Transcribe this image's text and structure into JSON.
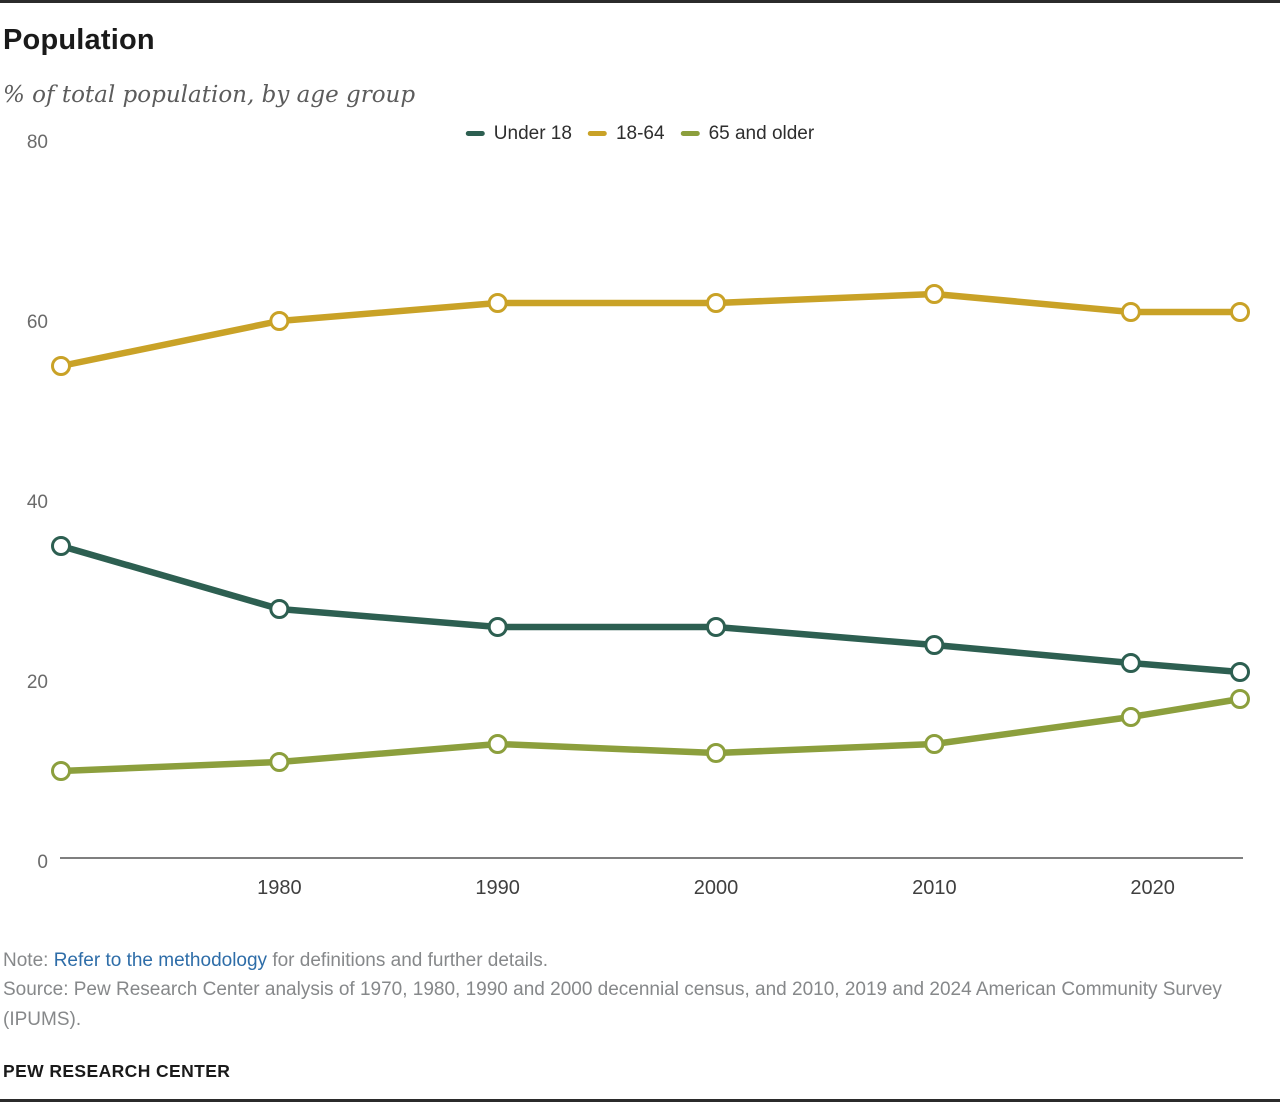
{
  "header": {
    "title": "Population",
    "subtitle": "% of total population, by age group"
  },
  "chart_data": {
    "type": "line",
    "title": "Population",
    "subtitle": "% of total population, by age group",
    "x": [
      1970,
      1980,
      1990,
      2000,
      2010,
      2019,
      2024
    ],
    "x_range": [
      1970,
      2024
    ],
    "series": [
      {
        "name": "Under 18",
        "color": "#2D5F51",
        "values": [
          35,
          28,
          26,
          26,
          24,
          22,
          21
        ]
      },
      {
        "name": "18-64",
        "color": "#C9A227",
        "values": [
          55,
          60,
          62,
          62,
          63,
          61,
          61
        ]
      },
      {
        "name": "65 and older",
        "color": "#8C9F3D",
        "values": [
          10,
          11,
          13,
          12,
          13,
          16,
          18
        ]
      }
    ],
    "ylim": [
      0,
      80
    ],
    "y_ticks": [
      0,
      20,
      40,
      60,
      80
    ],
    "x_ticks": [
      {
        "year": 1980,
        "label": "1980"
      },
      {
        "year": 1990,
        "label": "1990"
      },
      {
        "year": 2000,
        "label": "2000"
      },
      {
        "year": 2010,
        "label": "2010"
      },
      {
        "year": 2020,
        "label": "2020"
      }
    ],
    "grid": false,
    "legend_position": "top-center",
    "marker": "open-circle",
    "axis_color": "#7f7f7f"
  },
  "notes": {
    "note_prefix": "Note: ",
    "note_link": "Refer to the methodology",
    "note_suffix": " for definitions and further details.",
    "source": "Source: Pew Research Center analysis of 1970, 1980, 1990 and 2000 decennial census, and 2010, 2019 and 2024 American Community Survey (IPUMS).",
    "footer": "PEW RESEARCH CENTER"
  },
  "colors": {
    "rule": "#2b2b2b",
    "link": "#2e6da8",
    "note_text": "#86888a",
    "title_text": "#1a1a1a",
    "subtitle_text": "#5c5c5c"
  }
}
